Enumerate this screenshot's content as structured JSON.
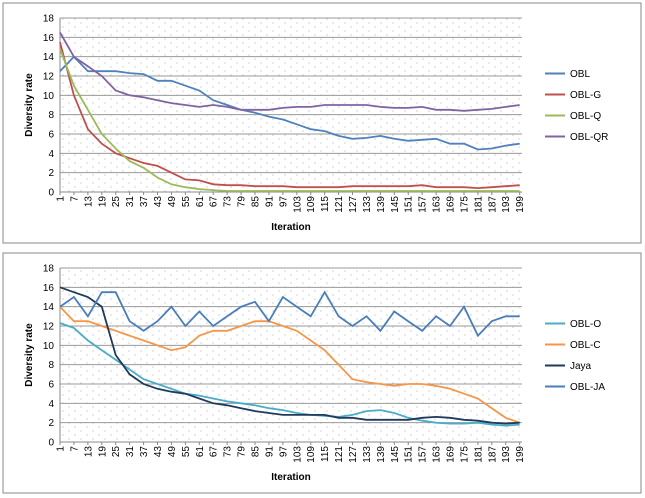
{
  "chart_data": [
    {
      "type": "line",
      "xlabel": "Iteration",
      "ylabel": "Diversity rate",
      "x": [
        1,
        7,
        13,
        19,
        25,
        31,
        37,
        43,
        49,
        55,
        61,
        67,
        73,
        79,
        85,
        91,
        97,
        103,
        109,
        115,
        121,
        127,
        133,
        139,
        145,
        151,
        157,
        163,
        169,
        175,
        181,
        187,
        193,
        199
      ],
      "xlim": [
        1,
        200
      ],
      "xticks": [
        1,
        7,
        13,
        19,
        25,
        31,
        37,
        43,
        49,
        55,
        61,
        67,
        73,
        79,
        85,
        91,
        97,
        103,
        109,
        115,
        121,
        127,
        133,
        139,
        145,
        151,
        157,
        163,
        169,
        175,
        181,
        187,
        193,
        199
      ],
      "ylim": [
        0,
        18
      ],
      "yticks": [
        0,
        2,
        4,
        6,
        8,
        10,
        12,
        14,
        16,
        18
      ],
      "grid": true,
      "legend": "right",
      "series": [
        {
          "name": "OBL",
          "color": "#4f81bd",
          "values": [
            12.5,
            14,
            12.5,
            12.5,
            12.5,
            12.3,
            12.2,
            11.5,
            11.5,
            11,
            10.5,
            9.5,
            9,
            8.5,
            8.2,
            7.8,
            7.5,
            7,
            6.5,
            6.3,
            5.8,
            5.5,
            5.6,
            5.8,
            5.5,
            5.3,
            5.4,
            5.5,
            5,
            5,
            4.4,
            4.5,
            4.8,
            5
          ]
        },
        {
          "name": "OBL-G",
          "color": "#c0504d",
          "values": [
            15.5,
            10,
            6.5,
            5,
            4,
            3.5,
            3,
            2.7,
            2,
            1.3,
            1.2,
            0.8,
            0.7,
            0.7,
            0.6,
            0.6,
            0.6,
            0.5,
            0.5,
            0.5,
            0.5,
            0.6,
            0.6,
            0.6,
            0.6,
            0.6,
            0.7,
            0.5,
            0.5,
            0.5,
            0.4,
            0.5,
            0.6,
            0.7
          ]
        },
        {
          "name": "OBL-Q",
          "color": "#9bbb59",
          "values": [
            14.8,
            11,
            8.5,
            6,
            4.5,
            3.2,
            2.5,
            1.5,
            0.8,
            0.5,
            0.3,
            0.2,
            0.1,
            0.1,
            0.1,
            0.1,
            0.1,
            0.1,
            0.1,
            0.1,
            0.1,
            0.1,
            0.1,
            0.1,
            0.1,
            0.1,
            0.1,
            0.1,
            0.1,
            0.1,
            0.1,
            0.1,
            0.1,
            0.1
          ]
        },
        {
          "name": "OBL-QR",
          "color": "#8064a2",
          "values": [
            16.5,
            14,
            13,
            12,
            10.5,
            10,
            9.8,
            9.5,
            9.2,
            9,
            8.8,
            9,
            8.8,
            8.5,
            8.5,
            8.5,
            8.7,
            8.8,
            8.8,
            9,
            9,
            9,
            9,
            8.8,
            8.7,
            8.7,
            8.8,
            8.5,
            8.5,
            8.4,
            8.5,
            8.6,
            8.8,
            9
          ]
        }
      ]
    },
    {
      "type": "line",
      "xlabel": "Iteration",
      "ylabel": "Diversity rate",
      "x": [
        1,
        7,
        13,
        19,
        25,
        31,
        37,
        43,
        49,
        55,
        61,
        67,
        73,
        79,
        85,
        91,
        97,
        103,
        109,
        115,
        121,
        127,
        133,
        139,
        145,
        151,
        157,
        163,
        169,
        175,
        181,
        187,
        193,
        199
      ],
      "xlim": [
        1,
        200
      ],
      "xticks": [
        1,
        7,
        13,
        19,
        25,
        31,
        37,
        43,
        49,
        55,
        61,
        67,
        73,
        79,
        85,
        91,
        97,
        103,
        109,
        115,
        121,
        127,
        133,
        139,
        145,
        151,
        157,
        163,
        169,
        175,
        181,
        187,
        193,
        199
      ],
      "ylim": [
        0,
        18
      ],
      "yticks": [
        0,
        2,
        4,
        6,
        8,
        10,
        12,
        14,
        16,
        18
      ],
      "grid": true,
      "legend": "right",
      "series": [
        {
          "name": "OBL-O",
          "color": "#4bacc6",
          "values": [
            12.3,
            11.8,
            10.5,
            9.5,
            8.5,
            7.5,
            6.5,
            6,
            5.5,
            5,
            4.8,
            4.5,
            4.2,
            4,
            3.8,
            3.5,
            3.3,
            3,
            2.8,
            2.7,
            2.6,
            2.8,
            3.2,
            3.3,
            3,
            2.5,
            2.2,
            2,
            1.9,
            1.9,
            2,
            1.8,
            1.7,
            1.8
          ]
        },
        {
          "name": "OBL-C",
          "color": "#f79646",
          "values": [
            14,
            12.5,
            12.5,
            12,
            11.5,
            11,
            10.5,
            10,
            9.5,
            9.8,
            11,
            11.5,
            11.5,
            12,
            12.5,
            12.5,
            12,
            11.5,
            10.5,
            9.5,
            8,
            6.5,
            6.2,
            6,
            5.8,
            6,
            6,
            5.8,
            5.5,
            5,
            4.5,
            3.5,
            2.5,
            2
          ]
        },
        {
          "name": "Jaya",
          "color": "#1f3a5a",
          "values": [
            16,
            15.5,
            15,
            14,
            9,
            7,
            6,
            5.5,
            5.2,
            5,
            4.5,
            4,
            3.8,
            3.5,
            3.2,
            3,
            2.8,
            2.8,
            2.8,
            2.8,
            2.5,
            2.5,
            2.3,
            2.3,
            2.3,
            2.3,
            2.5,
            2.6,
            2.5,
            2.3,
            2.2,
            2,
            1.9,
            2
          ]
        },
        {
          "name": "OBL-JA",
          "color": "#4a7ebb",
          "values": [
            14,
            15,
            13,
            15.5,
            15.5,
            12.5,
            11.5,
            12.5,
            14,
            12,
            13.5,
            12,
            13,
            14,
            14.5,
            12.5,
            15,
            14,
            13,
            15.5,
            13,
            12,
            13,
            11.5,
            13.5,
            12.5,
            11.5,
            13,
            12,
            14,
            11,
            12.5,
            13,
            13
          ]
        }
      ]
    }
  ]
}
